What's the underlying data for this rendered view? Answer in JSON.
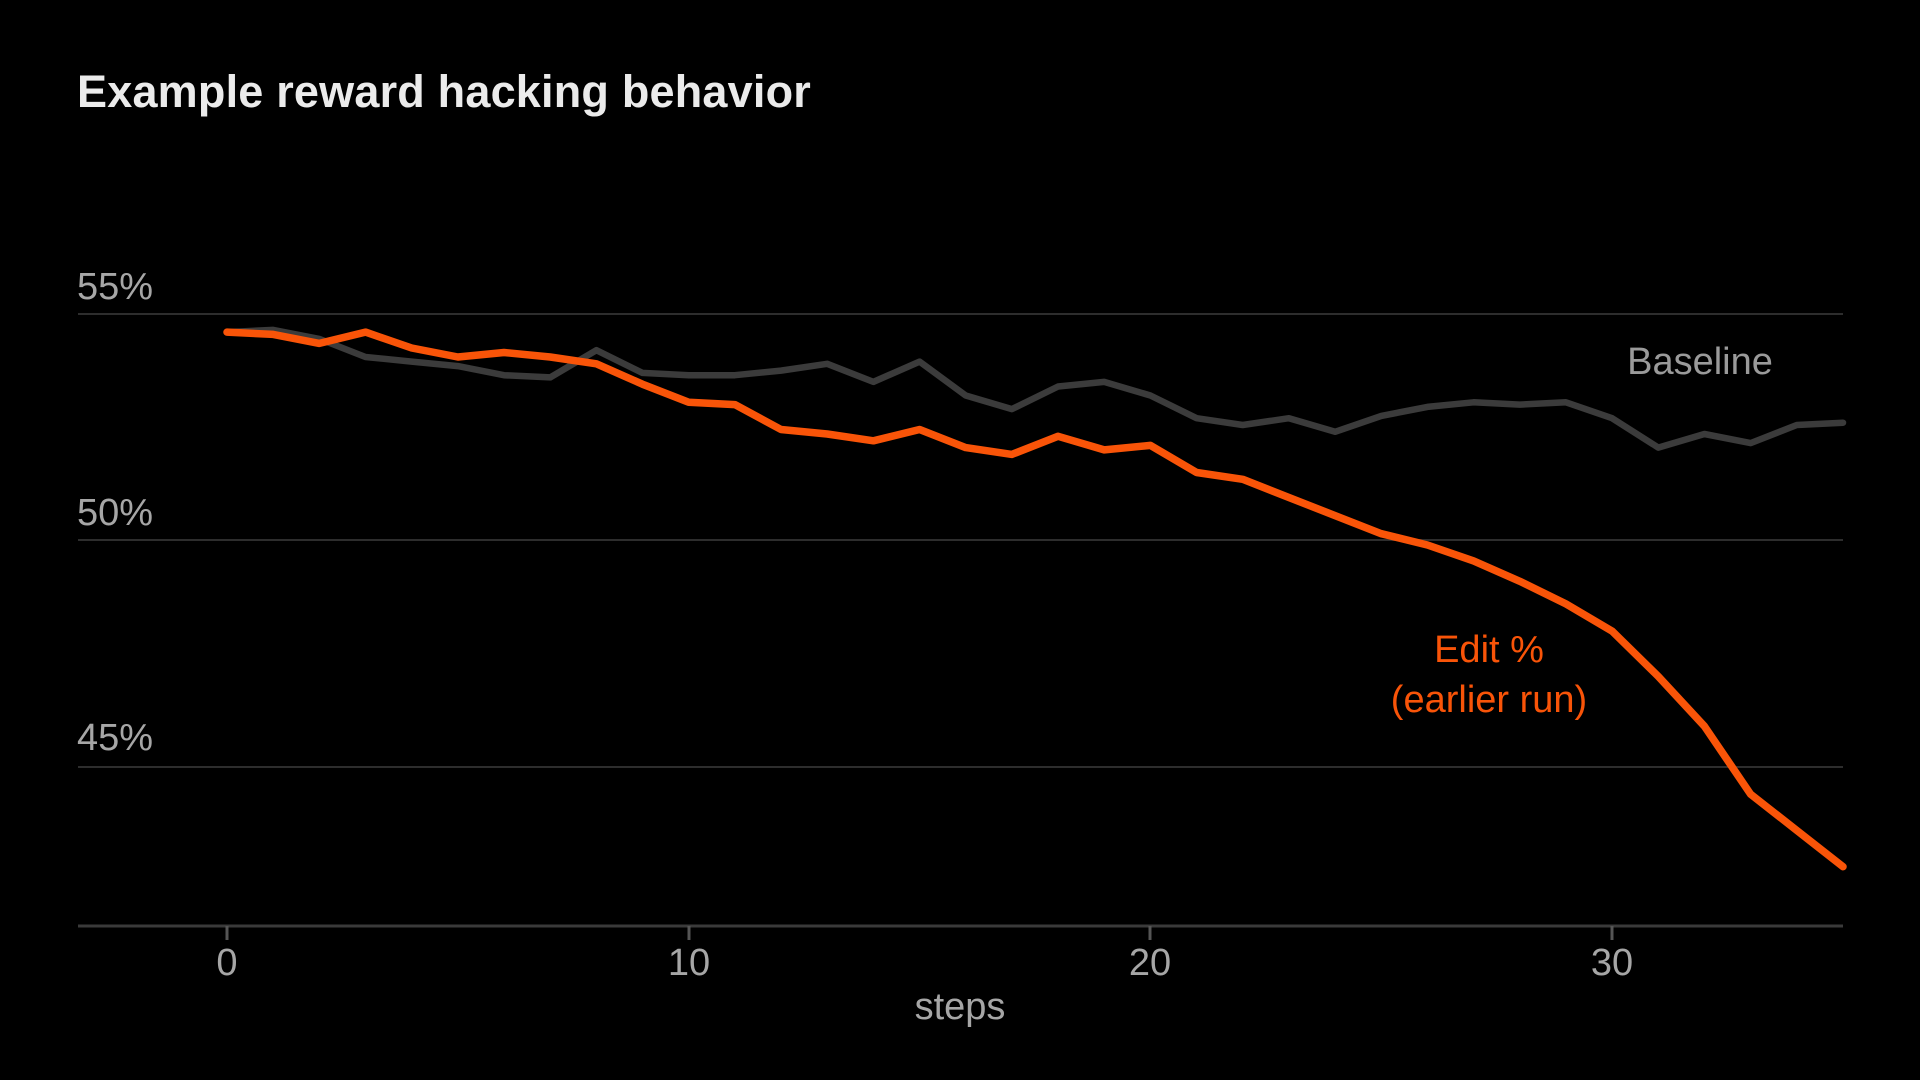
{
  "title": "Example reward hacking behavior",
  "x_axis": {
    "label": "steps",
    "tick_labels": [
      "0",
      "10",
      "20",
      "30"
    ],
    "tick_values": [
      0,
      10,
      20,
      30
    ]
  },
  "y_axis": {
    "tick_labels": [
      "55%",
      "50%",
      "45%"
    ],
    "tick_values": [
      55,
      50,
      45
    ]
  },
  "annotations": {
    "baseline_label": "Baseline",
    "edit_label_line1": "Edit %",
    "edit_label_line2": "(earlier run)"
  },
  "colors": {
    "background": "#000000",
    "title_text": "#ebebeb",
    "axis_text": "#a6a6a6",
    "baseline_line": "#3b3b3b",
    "baseline_label": "#9a9a9a",
    "edit_line": "#f95408",
    "gridline": "#2d2d2d",
    "axis_line": "#3a3a3a"
  },
  "chart_data": {
    "type": "line",
    "title": "Example reward hacking behavior",
    "xlabel": "steps",
    "ylabel": "",
    "xlim": [
      0,
      35
    ],
    "ylim": [
      42,
      56
    ],
    "grid": "horizontal-only",
    "legend_position": "inline-annotations",
    "x": [
      0,
      1,
      2,
      3,
      4,
      5,
      6,
      7,
      8,
      9,
      10,
      11,
      12,
      13,
      14,
      15,
      16,
      17,
      18,
      19,
      20,
      21,
      22,
      23,
      24,
      25,
      26,
      27,
      28,
      29,
      30,
      31,
      32,
      33,
      34,
      35
    ],
    "series": [
      {
        "id": "baseline",
        "name": "Baseline",
        "color": "#3b3b3b",
        "values": [
          54.6,
          54.65,
          54.45,
          54.05,
          53.95,
          53.85,
          53.65,
          53.6,
          54.2,
          53.7,
          53.65,
          53.65,
          53.75,
          53.9,
          53.5,
          53.95,
          53.2,
          52.9,
          53.4,
          53.5,
          53.2,
          52.7,
          52.55,
          52.7,
          52.4,
          52.75,
          52.95,
          53.05,
          53.0,
          53.05,
          52.7,
          52.05,
          52.35,
          52.15,
          52.55,
          52.6
        ]
      },
      {
        "id": "edit",
        "name": "Edit % (earlier run)",
        "color": "#f95408",
        "values": [
          54.6,
          54.55,
          54.35,
          54.6,
          54.25,
          54.05,
          54.15,
          54.05,
          53.9,
          53.45,
          53.05,
          53.0,
          52.45,
          52.35,
          52.2,
          52.45,
          52.05,
          51.9,
          52.3,
          52.0,
          52.1,
          51.5,
          51.35,
          50.95,
          50.55,
          50.15,
          49.9,
          49.55,
          49.1,
          48.6,
          48.0,
          47.0,
          45.9,
          44.4,
          43.6,
          42.8
        ]
      }
    ]
  }
}
